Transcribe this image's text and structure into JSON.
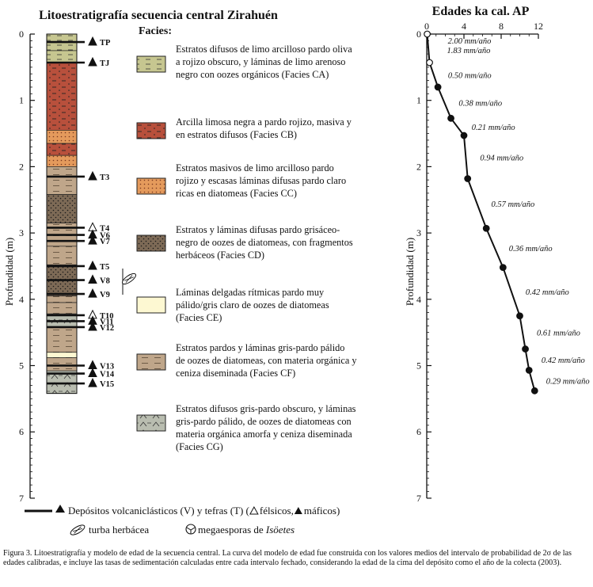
{
  "title": "Litoestratigrafía secuencia central Zirahuén",
  "facies_header": "Facies:",
  "strat": {
    "ylabel": "Profundidad (m)",
    "yticks": [
      "0",
      "1",
      "2",
      "3",
      "4",
      "5",
      "6",
      "7"
    ],
    "ylim": [
      0,
      7
    ],
    "layers": [
      {
        "name": "TP",
        "depth": 0.12,
        "kind": "T",
        "felsic": false
      },
      {
        "name": "TJ",
        "depth": 0.43,
        "kind": "T",
        "felsic": false
      },
      {
        "name": "T3",
        "depth": 2.15,
        "kind": "T",
        "felsic": false
      },
      {
        "name": "T4",
        "depth": 2.92,
        "kind": "T",
        "felsic": true
      },
      {
        "name": "V6",
        "depth": 3.03,
        "kind": "V",
        "felsic": false
      },
      {
        "name": "V7",
        "depth": 3.12,
        "kind": "V",
        "felsic": false
      },
      {
        "name": "T5",
        "depth": 3.5,
        "kind": "T",
        "felsic": false
      },
      {
        "name": "V8",
        "depth": 3.71,
        "kind": "V",
        "felsic": false
      },
      {
        "name": "V9",
        "depth": 3.92,
        "kind": "V",
        "felsic": false
      },
      {
        "name": "T10",
        "depth": 4.24,
        "kind": "T",
        "felsic": true
      },
      {
        "name": "V11",
        "depth": 4.33,
        "kind": "V",
        "felsic": false
      },
      {
        "name": "V12",
        "depth": 4.42,
        "kind": "V",
        "felsic": false
      },
      {
        "name": "V13",
        "depth": 5.0,
        "kind": "V",
        "felsic": false
      },
      {
        "name": "V14",
        "depth": 5.12,
        "kind": "V",
        "felsic": false
      },
      {
        "name": "V15",
        "depth": 5.27,
        "kind": "V",
        "felsic": false
      }
    ],
    "units": [
      {
        "top": 0.0,
        "bottom": 0.25,
        "facies": "CA"
      },
      {
        "top": 0.25,
        "bottom": 0.43,
        "facies": "CA"
      },
      {
        "top": 0.43,
        "bottom": 1.45,
        "facies": "CB"
      },
      {
        "top": 1.45,
        "bottom": 1.65,
        "facies": "CC"
      },
      {
        "top": 1.65,
        "bottom": 1.83,
        "facies": "CB"
      },
      {
        "top": 1.83,
        "bottom": 2.0,
        "facies": "CC"
      },
      {
        "top": 2.0,
        "bottom": 2.15,
        "facies": "CF"
      },
      {
        "top": 2.15,
        "bottom": 2.42,
        "facies": "CF"
      },
      {
        "top": 2.42,
        "bottom": 2.85,
        "facies": "CD"
      },
      {
        "top": 2.85,
        "bottom": 3.2,
        "facies": "CF"
      },
      {
        "top": 3.2,
        "bottom": 3.48,
        "facies": "CF"
      },
      {
        "top": 3.48,
        "bottom": 3.95,
        "facies": "CD"
      },
      {
        "top": 3.95,
        "bottom": 4.05,
        "facies": "CF"
      },
      {
        "top": 4.05,
        "bottom": 4.22,
        "facies": "CF"
      },
      {
        "top": 4.22,
        "bottom": 4.42,
        "facies": "CG"
      },
      {
        "top": 4.42,
        "bottom": 4.8,
        "facies": "CF"
      },
      {
        "top": 4.8,
        "bottom": 4.88,
        "facies": "CE"
      },
      {
        "top": 4.88,
        "bottom": 5.08,
        "facies": "CF"
      },
      {
        "top": 5.08,
        "bottom": 5.42,
        "facies": "CG"
      }
    ]
  },
  "facies": [
    {
      "code": "CA",
      "color": "#c6c690",
      "text": [
        "Estratos difusos de limo arcilloso pardo oliva",
        "a rojizo obscuro, y láminas de limo arenoso",
        "negro con oozes orgánicos (Facies CA)"
      ]
    },
    {
      "code": "CB",
      "color": "#b8503c",
      "text": [
        "Arcilla limosa negra a pardo rojizo, masiva y",
        "en estratos difusos (Facies CB)"
      ]
    },
    {
      "code": "CC",
      "color": "#e49a5c",
      "text": [
        "Estratos masivos de limo arcilloso pardo",
        "rojizo y escasas láminas difusas pardo claro",
        "ricas en diatomeas (Facies CC)"
      ]
    },
    {
      "code": "CD",
      "color": "#7d6a56",
      "text": [
        "Estratos y láminas difusas pardo grisáceo-",
        "negro de oozes de diatomeas, con fragmentos",
        "herbáceos (Facies CD)"
      ]
    },
    {
      "code": "CE",
      "color": "#fdf8d2",
      "text": [
        "Láminas delgadas rítmicas pardo muy",
        "pálido/gris claro de oozes de diatomeas",
        "(Facies CE)"
      ]
    },
    {
      "code": "CF",
      "color": "#bfa68a",
      "text": [
        "Estratos pardos  y láminas gris-pardo pálido",
        "de oozes de diatomeas, con materia orgánica y",
        "ceniza diseminada (Facies CF)"
      ]
    },
    {
      "code": "CG",
      "color": "#b9bdb0",
      "text": [
        "Estratos difusos gris-pardo obscuro, y láminas",
        "gris-pardo pálido, de oozes de diatomeas con",
        "materia orgánica amorfa y ceniza diseminada",
        "(Facies CG)"
      ]
    }
  ],
  "legend": {
    "volcanic": "Depósitos volcaniclásticos (V) y tefras (T) (",
    "felsic": "félsicos,",
    "mafic": "máficos)",
    "turba": "turba herbácea",
    "megasporas_prefix": "megaesporas de ",
    "megasporas_taxon": "Isöetes"
  },
  "chart_data": {
    "type": "line",
    "title": "Edades ka cal. AP",
    "xlabel": "Edades ka cal. AP",
    "ylabel": "Profundidad (m)",
    "xlim": [
      0,
      12
    ],
    "ylim": [
      0,
      7
    ],
    "xticks": [
      "0",
      "4",
      "8",
      "12"
    ],
    "yticks": [
      "0",
      "1",
      "2",
      "3",
      "4",
      "5",
      "6",
      "7"
    ],
    "x_axis_position": "top",
    "y_inverted": true,
    "points": [
      {
        "x": 0.05,
        "y": 0.0,
        "open": true
      },
      {
        "x": 0.3,
        "y": 0.43,
        "open": true
      },
      {
        "x": 1.2,
        "y": 0.8,
        "open": false
      },
      {
        "x": 2.6,
        "y": 1.27,
        "open": false
      },
      {
        "x": 4.0,
        "y": 1.53,
        "open": false
      },
      {
        "x": 4.4,
        "y": 2.18,
        "open": false
      },
      {
        "x": 6.4,
        "y": 2.93,
        "open": false
      },
      {
        "x": 8.2,
        "y": 3.52,
        "open": false
      },
      {
        "x": 10.0,
        "y": 4.25,
        "open": false
      },
      {
        "x": 10.6,
        "y": 4.75,
        "open": false
      },
      {
        "x": 11.0,
        "y": 5.07,
        "open": false
      },
      {
        "x": 11.6,
        "y": 5.38,
        "open": false
      }
    ],
    "rates": [
      "2.00 mm/año",
      "1.83 mm/año",
      "0.50 mm/año",
      "0.38 mm/año",
      "0.21 mm/año",
      "0.94 mm/año",
      "0.57 mm/año",
      "0.36 mm/año",
      "0.42 mm/año",
      "0.61 mm/año",
      "0.42 mm/año",
      "0.29 mm/año"
    ]
  },
  "caption": "Figura 3. Litoestratigrafía y modelo de edad de la secuencia central. La curva del modelo de edad fue construida con los valores medios del intervalo de probabilidad de 2σ de las edades calibradas, e incluye las tasas de sedimentación calculadas entre cada intervalo fechado, considerando la edad de la cima del depósito como el año de la colecta (2003)."
}
